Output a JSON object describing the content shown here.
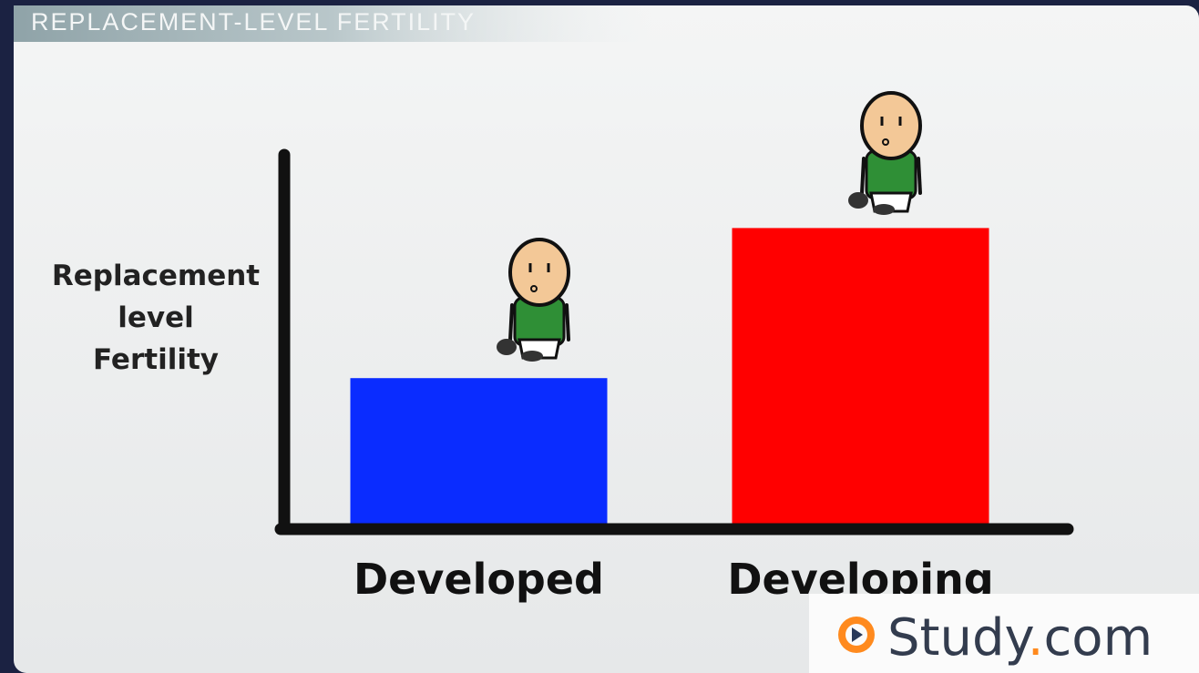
{
  "chart_data": {
    "type": "bar",
    "title": "REPLACEMENT-LEVEL FERTILITY",
    "y_label": "Replacement level Fertility",
    "categories": [
      "Developed",
      "Developing"
    ],
    "values": [
      40,
      80
    ],
    "colors": [
      "#0a2cff",
      "#ff0000"
    ],
    "ylim": [
      0,
      100
    ]
  },
  "logo": {
    "name": "Study",
    "dot": ".",
    "tld": "com"
  }
}
